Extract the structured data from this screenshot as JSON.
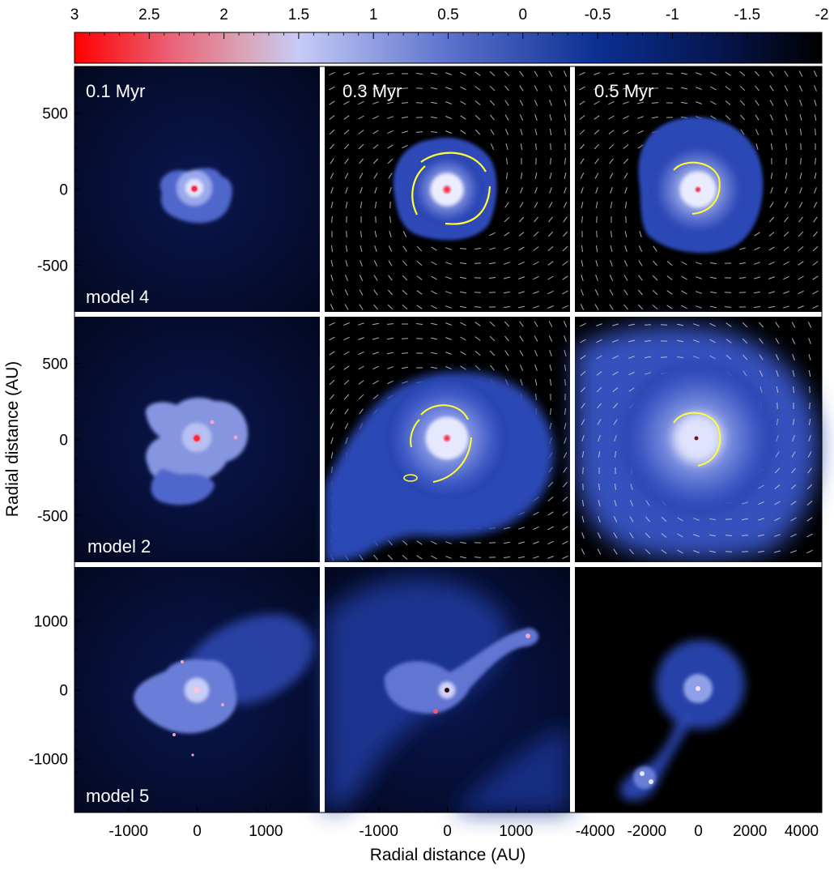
{
  "colorbar": {
    "tick_labels": [
      "3",
      "2.5",
      "2",
      "1.5",
      "1",
      "0.5",
      "0",
      "-0.5",
      "-1",
      "-1.5",
      "-2"
    ],
    "colors": [
      "#ff0000",
      "#d9a6b9",
      "#c6cbf7",
      "#5c72cc",
      "#0b2f92",
      "#000000"
    ]
  },
  "axes": {
    "xlabel": "Radial distance (AU)",
    "ylabel": "Radial distance (AU)",
    "row_y_ticks": [
      [
        "500",
        "0",
        "-500"
      ],
      [
        "500",
        "0",
        "-500"
      ],
      [
        "1000",
        "0",
        "-1000"
      ]
    ],
    "col_x_ticks": [
      [
        "-1000",
        "0",
        "1000"
      ],
      [
        "-1000",
        "0",
        "1000"
      ],
      [
        "-4000",
        "-2000",
        "0",
        "2000",
        "4000"
      ]
    ]
  },
  "time_labels": [
    "0.1 Myr",
    "0.3 Myr",
    "0.5 Myr"
  ],
  "model_labels": [
    "model 4",
    "model 2",
    "model 5"
  ],
  "colors": {
    "background": "#02040f",
    "disk_outer": "#2a45b0",
    "disk_inner": "#d8dcfb",
    "core": "#ff2a3a",
    "contour": "#ffff33",
    "vectors": "#d8d8d8"
  }
}
